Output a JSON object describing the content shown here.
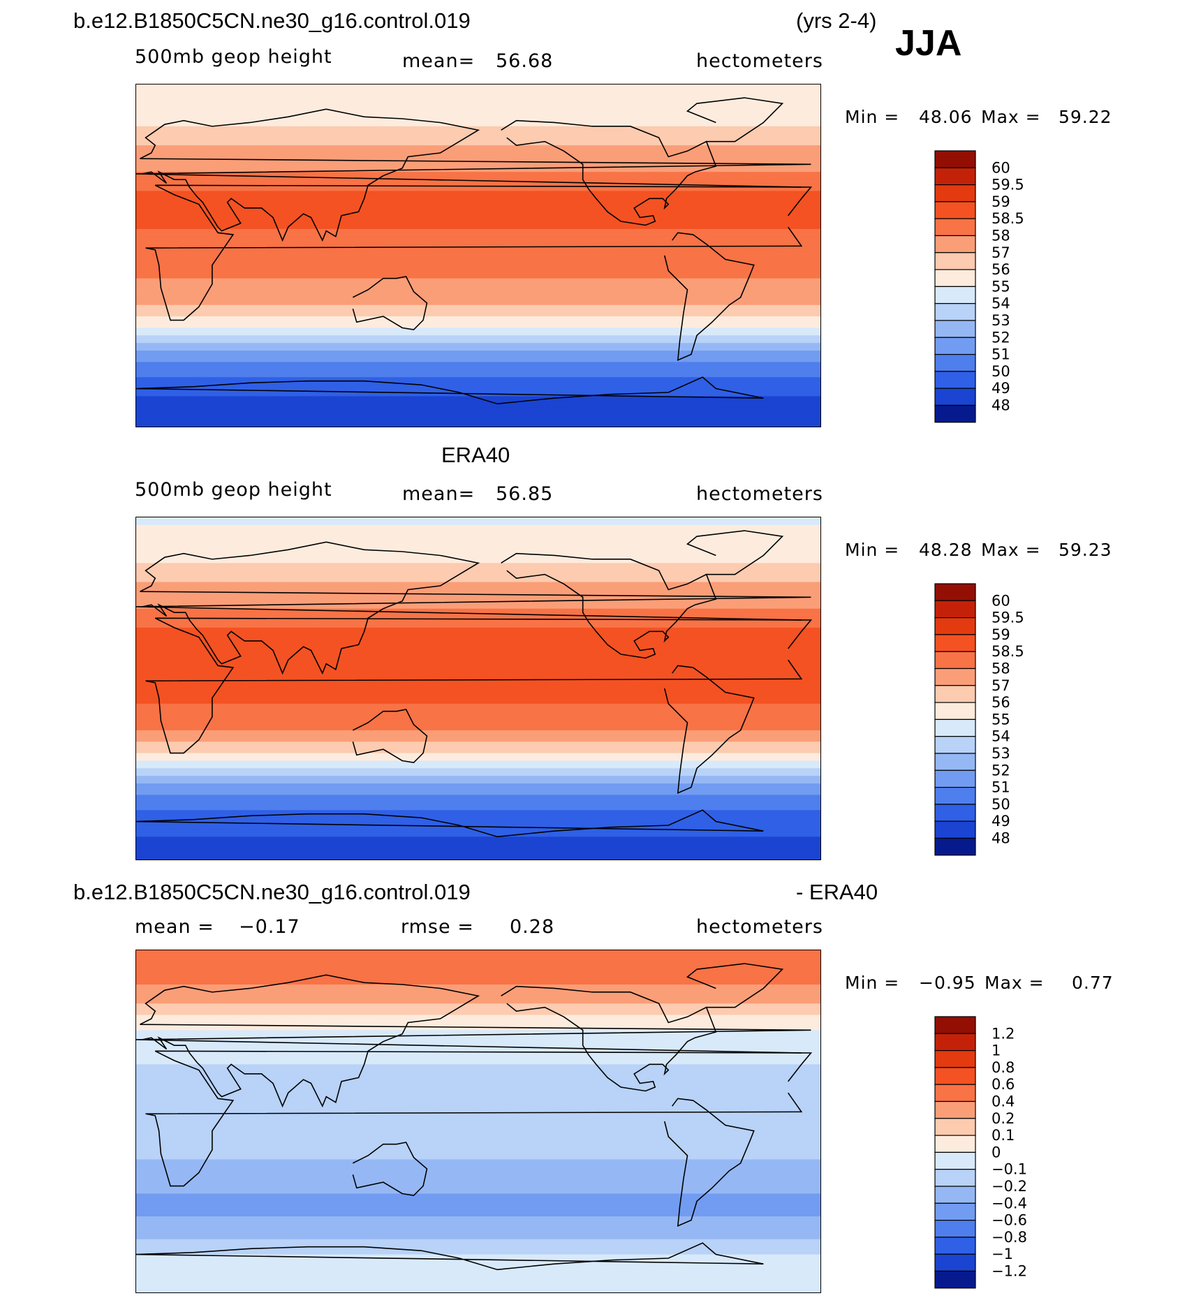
{
  "header": {
    "case_name": "b.e12.B1850C5CN.ne30_g16.control.019",
    "years": "(yrs 2-4)",
    "season": "JJA"
  },
  "colors": {
    "warm": [
      "#fdecde",
      "#fccbb0",
      "#fa9e78",
      "#f87346",
      "#f45222",
      "#e33a10",
      "#c42208",
      "#930f03"
    ],
    "cool": [
      "#d8e9fa",
      "#b8d2f8",
      "#95b8f5",
      "#729cf1",
      "#4f7eed",
      "#2f60e6",
      "#1a44d1",
      "#0c2cae",
      "#061a8e"
    ],
    "coastline": "#000000"
  },
  "chart_data": [
    {
      "type": "heatmap",
      "name": "model-panel",
      "title": "b.e12.B1850C5CN.ne30_g16.control.019",
      "variable_label": "500mb geop height",
      "stat_label": "mean=",
      "stat_value": "56.68",
      "units": "hectometers",
      "min_label": "Min =",
      "min_value": "48.06",
      "max_label": "Max =",
      "max_value": "59.22",
      "colorbar_levels": [
        "60",
        "59.5",
        "59",
        "58.5",
        "58",
        "57",
        "56",
        "55",
        "54",
        "53",
        "52",
        "51",
        "50",
        "49",
        "48"
      ],
      "colorbar_colors": [
        "#930f03",
        "#c42208",
        "#e33a10",
        "#f45222",
        "#f87346",
        "#fa9e78",
        "#fccbb0",
        "#fdecde",
        "#d8e9fa",
        "#b8d2f8",
        "#95b8f5",
        "#729cf1",
        "#4f7eed",
        "#2f60e6",
        "#1a44d1",
        "#061a8e"
      ],
      "latitude_profile": [
        {
          "lat": 90,
          "value": 55.0
        },
        {
          "lat": 70,
          "value": 55.8
        },
        {
          "lat": 55,
          "value": 57.2
        },
        {
          "lat": 40,
          "value": 58.3
        },
        {
          "lat": 25,
          "value": 58.8
        },
        {
          "lat": 10,
          "value": 58.4
        },
        {
          "lat": -5,
          "value": 58.2
        },
        {
          "lat": -20,
          "value": 57.8
        },
        {
          "lat": -30,
          "value": 56.5
        },
        {
          "lat": -40,
          "value": 54.5
        },
        {
          "lat": -50,
          "value": 52.0
        },
        {
          "lat": -60,
          "value": 50.5
        },
        {
          "lat": -70,
          "value": 49.2
        },
        {
          "lat": -90,
          "value": 48.3
        }
      ]
    },
    {
      "type": "heatmap",
      "name": "obs-panel",
      "title": "ERA40",
      "variable_label": "500mb geop height",
      "stat_label": "mean=",
      "stat_value": "56.85",
      "units": "hectometers",
      "min_label": "Min =",
      "min_value": "48.28",
      "max_label": "Max =",
      "max_value": "59.23",
      "colorbar_levels": [
        "60",
        "59.5",
        "59",
        "58.5",
        "58",
        "57",
        "56",
        "55",
        "54",
        "53",
        "52",
        "51",
        "50",
        "49",
        "48"
      ],
      "colorbar_colors": [
        "#930f03",
        "#c42208",
        "#e33a10",
        "#f45222",
        "#f87346",
        "#fa9e78",
        "#fccbb0",
        "#fdecde",
        "#d8e9fa",
        "#b8d2f8",
        "#95b8f5",
        "#729cf1",
        "#4f7eed",
        "#2f60e6",
        "#1a44d1",
        "#061a8e"
      ],
      "latitude_profile": [
        {
          "lat": 90,
          "value": 54.8
        },
        {
          "lat": 70,
          "value": 55.6
        },
        {
          "lat": 55,
          "value": 57.0
        },
        {
          "lat": 40,
          "value": 58.2
        },
        {
          "lat": 25,
          "value": 58.8
        },
        {
          "lat": 10,
          "value": 58.6
        },
        {
          "lat": -5,
          "value": 58.6
        },
        {
          "lat": -20,
          "value": 58.2
        },
        {
          "lat": -30,
          "value": 56.8
        },
        {
          "lat": -40,
          "value": 54.5
        },
        {
          "lat": -50,
          "value": 52.0
        },
        {
          "lat": -60,
          "value": 50.5
        },
        {
          "lat": -70,
          "value": 49.3
        },
        {
          "lat": -90,
          "value": 48.5
        }
      ]
    },
    {
      "type": "heatmap",
      "name": "diff-panel",
      "title": "b.e12.B1850C5CN.ne30_g16.control.019",
      "title_suffix": "- ERA40",
      "variable_label": "mean =",
      "stat_value_mean": "−0.17",
      "stat_label": "rmse =",
      "stat_value": "0.28",
      "units": "hectometers",
      "min_label": "Min =",
      "min_value": "−0.95",
      "max_label": "Max =",
      "max_value": "0.77",
      "colorbar_levels": [
        "1.2",
        "1",
        "0.8",
        "0.6",
        "0.4",
        "0.2",
        "0.1",
        "0",
        "−0.1",
        "−0.2",
        "−0.4",
        "−0.6",
        "−0.8",
        "−1",
        "−1.2"
      ],
      "colorbar_colors": [
        "#930f03",
        "#c42208",
        "#e33a10",
        "#f45222",
        "#f87346",
        "#fa9e78",
        "#fccbb0",
        "#fdecde",
        "#d8e9fa",
        "#b8d2f8",
        "#95b8f5",
        "#729cf1",
        "#4f7eed",
        "#2f60e6",
        "#1a44d1",
        "#061a8e"
      ],
      "latitude_profile": [
        {
          "lat": 90,
          "value": 0.55
        },
        {
          "lat": 75,
          "value": 0.45
        },
        {
          "lat": 60,
          "value": 0.15
        },
        {
          "lat": 45,
          "value": -0.05
        },
        {
          "lat": 30,
          "value": -0.1
        },
        {
          "lat": 15,
          "value": -0.15
        },
        {
          "lat": 0,
          "value": -0.18
        },
        {
          "lat": -20,
          "value": -0.2
        },
        {
          "lat": -35,
          "value": -0.35
        },
        {
          "lat": -45,
          "value": -0.5
        },
        {
          "lat": -55,
          "value": -0.3
        },
        {
          "lat": -70,
          "value": -0.1
        },
        {
          "lat": -90,
          "value": -0.05
        }
      ]
    }
  ]
}
